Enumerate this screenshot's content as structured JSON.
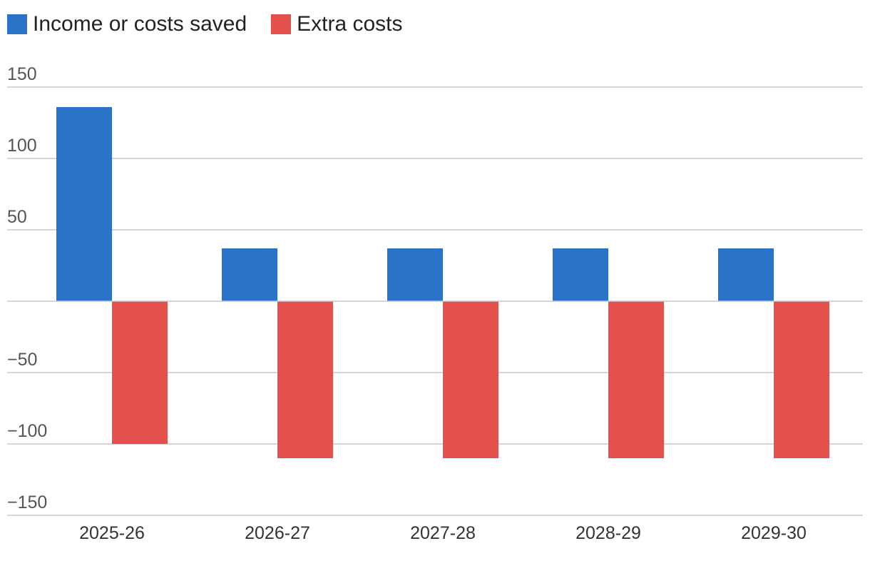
{
  "chart_data": {
    "type": "bar",
    "categories": [
      "2025-26",
      "2026-27",
      "2027-28",
      "2028-29",
      "2029-30"
    ],
    "series": [
      {
        "name": "Income or costs saved",
        "color": "#2a73c9",
        "values": [
          136,
          37,
          37,
          37,
          37
        ]
      },
      {
        "name": "Extra costs",
        "color": "#e4504d",
        "values": [
          -100,
          -110,
          -110,
          -110,
          -110
        ]
      }
    ],
    "ylim": [
      -150,
      150
    ],
    "yticks": [
      150,
      100,
      50,
      -50,
      -100,
      -150
    ],
    "ytick_labels": [
      "150",
      "100",
      "50",
      "−50",
      "−100",
      "−150"
    ],
    "grid": true,
    "legend_position": "top-left",
    "title": "",
    "xlabel": "",
    "ylabel": ""
  }
}
